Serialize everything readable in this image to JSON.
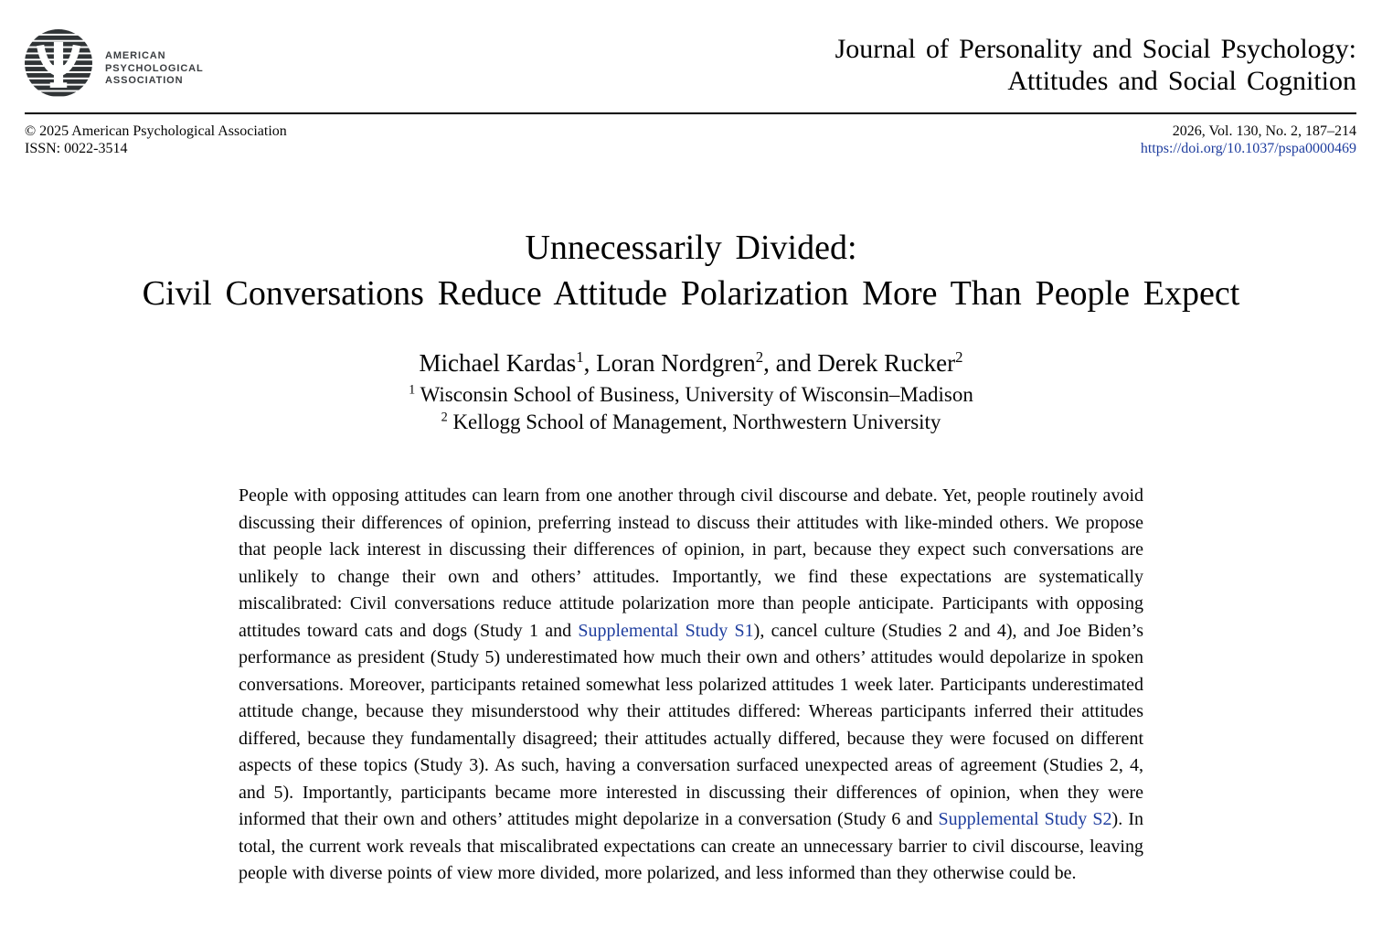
{
  "colors": {
    "link_blue": "#1e3d9e",
    "logo_dark": "#303436"
  },
  "masthead": {
    "logo_wordmark_lines": [
      "AMERICAN",
      "PSYCHOLOGICAL",
      "ASSOCIATION"
    ],
    "journal_title_line1": "Journal of Personality and Social Psychology:",
    "journal_title_line2": "Attitudes and Social Cognition"
  },
  "meta": {
    "copyright": "© 2025 American Psychological Association",
    "issn": "ISSN: 0022-3514",
    "volume": "2026, Vol. 130, No. 2, 187–214",
    "doi": "https://doi.org/10.1037/pspa0000469"
  },
  "article": {
    "title_line1": "Unnecessarily Divided:",
    "title_line2": "Civil Conversations Reduce Attitude Polarization More Than People Expect",
    "authors_segments": [
      {
        "text": "Michael Kardas"
      },
      {
        "text": "1",
        "sup": true
      },
      {
        "text": ", Loran Nordgren"
      },
      {
        "text": "2",
        "sup": true
      },
      {
        "text": ", and Derek Rucker"
      },
      {
        "text": "2",
        "sup": true
      }
    ],
    "affiliation1_segments": [
      {
        "text": "1",
        "sup": true
      },
      {
        "text": " Wisconsin School of Business, University of Wisconsin–Madison"
      }
    ],
    "affiliation2_segments": [
      {
        "text": "2",
        "sup": true
      },
      {
        "text": " Kellogg School of Management, Northwestern University"
      }
    ]
  },
  "abstract": {
    "segments": [
      {
        "text": "People with opposing attitudes can learn from one another through civil discourse and debate. Yet, people routinely avoid discussing their differences of opinion, preferring instead to discuss their attitudes with like-minded others. We propose that people lack interest in discussing their differences of opinion, in part, because they expect such conversations are unlikely to change their own and others’ attitudes. Importantly, we find these expectations are systematically miscalibrated: Civil conversations reduce attitude polarization more than people anticipate. Participants with opposing attitudes toward cats and dogs (Study 1 and "
      },
      {
        "text": "Supplemental Study S1",
        "link": true
      },
      {
        "text": "), cancel culture (Studies 2 and 4), and Joe Biden’s performance as president (Study 5) underestimated how much their own and others’ attitudes would depolarize in spoken conversations. Moreover, participants retained somewhat less polarized attitudes 1 week later. Participants underestimated attitude change, because they misunderstood why their attitudes differed: Whereas participants inferred their attitudes differed, because they fundamentally disagreed; their attitudes actually differed, because they were focused on different aspects of these topics (Study 3). As such, having a conversation surfaced unexpected areas of agreement (Studies 2, 4, and 5). Importantly, participants became more interested in discussing their differences of opinion, when they were informed that their own and others’ attitudes might depolarize in a conversation (Study 6 and "
      },
      {
        "text": "Supplemental Study S2",
        "link": true
      },
      {
        "text": "). In total, the current work reveals that miscalibrated expectations can create an unnecessary barrier to civil discourse, leaving people with diverse points of view more divided, more polarized, and less informed than they otherwise could be."
      }
    ]
  }
}
